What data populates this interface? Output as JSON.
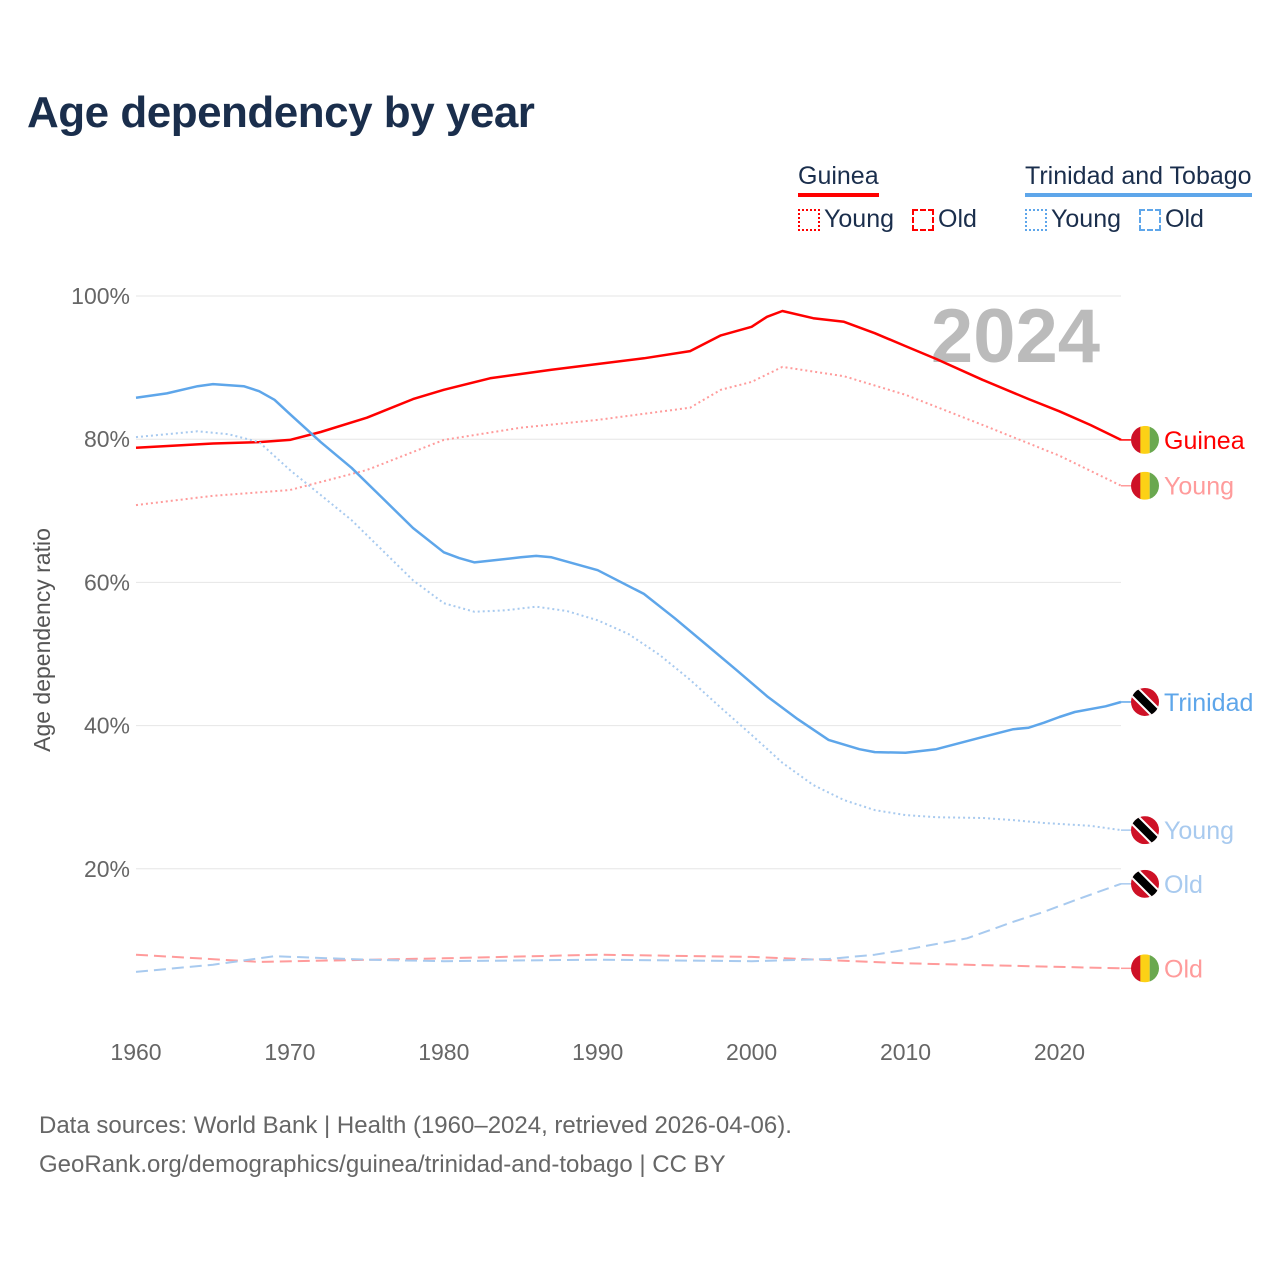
{
  "title": "Age dependency by year",
  "legend": [
    {
      "country": "Guinea",
      "color": "#ff0000",
      "items": [
        {
          "label": "Young",
          "style": "dotted"
        },
        {
          "label": "Old",
          "style": "dashed"
        }
      ]
    },
    {
      "country": "Trinidad and Tobago",
      "color": "#5ea6ea",
      "items": [
        {
          "label": "Young",
          "style": "dotted"
        },
        {
          "label": "Old",
          "style": "dashed"
        }
      ]
    }
  ],
  "year_watermark": "2024",
  "source": {
    "line1": "Data sources: World Bank | Health (1960–2024, retrieved 2026-04-06).",
    "line2": "GeoRank.org/demographics/guinea/trinidad-and-tobago | CC BY"
  },
  "chart_data": {
    "type": "line",
    "title": "Age dependency by year",
    "xlabel": "",
    "ylabel": "Age dependency ratio",
    "xlim": [
      1960,
      2024
    ],
    "ylim": [
      0,
      100
    ],
    "x_ticks": [
      1960,
      1970,
      1980,
      1990,
      2000,
      2010,
      2020
    ],
    "y_ticks": [
      {
        "v": 20,
        "label": "20%"
      },
      {
        "v": 40,
        "label": "40%"
      },
      {
        "v": 60,
        "label": "60%"
      },
      {
        "v": 80,
        "label": "80%"
      },
      {
        "v": 100,
        "label": "100%"
      }
    ],
    "grid": true,
    "series": [
      {
        "name": "Guinea",
        "end_label": "Guinea",
        "flag": "guinea",
        "color": "#ff0000",
        "style": "solid",
        "x": [
          1960,
          1965,
          1968,
          1970,
          1972,
          1975,
          1978,
          1980,
          1983,
          1985,
          1987,
          1990,
          1993,
          1996,
          1998,
          2000,
          2001,
          2002,
          2004,
          2006,
          2008,
          2010,
          2012,
          2015,
          2018,
          2020,
          2022,
          2024
        ],
        "y": [
          78.8,
          79.4,
          79.6,
          79.9,
          81,
          83,
          85.6,
          86.9,
          88.5,
          89.1,
          89.7,
          90.5,
          91.3,
          92.3,
          94.5,
          95.7,
          97.1,
          97.9,
          96.9,
          96.4,
          94.8,
          93,
          91.2,
          88.3,
          85.6,
          83.9,
          82,
          79.9
        ]
      },
      {
        "name": "Guinea Young",
        "end_label": "Young",
        "flag": "guinea",
        "color": "#ff9b9b",
        "style": "dotted",
        "x": [
          1960,
          1965,
          1970,
          1975,
          1980,
          1985,
          1990,
          1996,
          1998,
          2000,
          2002,
          2006,
          2010,
          2015,
          2020,
          2024
        ],
        "y": [
          70.8,
          72.1,
          72.9,
          75.7,
          79.9,
          81.6,
          82.7,
          84.4,
          86.9,
          88,
          90.1,
          88.8,
          86.2,
          82,
          77.7,
          73.5
        ]
      },
      {
        "name": "Guinea Old",
        "end_label": "Old",
        "flag": "guinea",
        "color": "#ff9b9b",
        "style": "dashed",
        "x": [
          1960,
          1968,
          1980,
          1990,
          2000,
          2010,
          2020,
          2024
        ],
        "y": [
          8,
          7,
          7.5,
          8,
          7.7,
          6.8,
          6.3,
          6.1
        ]
      },
      {
        "name": "Trinidad and Tobago",
        "end_label": "Trinidad",
        "flag": "trinidad",
        "color": "#5ea6ea",
        "style": "solid",
        "x": [
          1960,
          1962,
          1964,
          1965,
          1967,
          1968,
          1969,
          1970,
          1972,
          1974,
          1976,
          1978,
          1980,
          1981,
          1982,
          1985,
          1986,
          1987,
          1990,
          1993,
          1995,
          1997,
          1999,
          2001,
          2003,
          2005,
          2007,
          2008,
          2010,
          2012,
          2015,
          2017,
          2018,
          2019,
          2020,
          2021,
          2023,
          2024
        ],
        "y": [
          85.8,
          86.4,
          87.4,
          87.7,
          87.4,
          86.7,
          85.5,
          83.5,
          79.6,
          76,
          71.8,
          67.6,
          64.2,
          63.4,
          62.8,
          63.5,
          63.7,
          63.5,
          61.7,
          58.4,
          55,
          51.4,
          47.8,
          44.1,
          40.9,
          38,
          36.7,
          36.3,
          36.2,
          36.7,
          38.4,
          39.5,
          39.7,
          40.4,
          41.2,
          41.9,
          42.7,
          43.3
        ]
      },
      {
        "name": "Trinidad and Tobago Young",
        "end_label": "Young",
        "flag": "trinidad",
        "color": "#a8caef",
        "style": "dotted",
        "x": [
          1960,
          1964,
          1966,
          1968,
          1970,
          1972,
          1974,
          1976,
          1978,
          1980,
          1982,
          1984,
          1986,
          1988,
          1990,
          1992,
          1994,
          1996,
          1998,
          2000,
          2002,
          2004,
          2006,
          2008,
          2010,
          2012,
          2015,
          2017,
          2019,
          2022,
          2024
        ],
        "y": [
          80.3,
          81.1,
          80.7,
          79.6,
          75.7,
          72.2,
          68.7,
          64.5,
          60.3,
          57.1,
          55.9,
          56.1,
          56.6,
          56,
          54.7,
          52.8,
          49.9,
          46.4,
          42.5,
          38.7,
          34.8,
          31.7,
          29.6,
          28.2,
          27.5,
          27.2,
          27.1,
          26.8,
          26.4,
          26,
          25.4
        ]
      },
      {
        "name": "Trinidad and Tobago Old",
        "end_label": "Old",
        "flag": "trinidad",
        "color": "#a8caef",
        "style": "dashed",
        "x": [
          1960,
          1965,
          1969,
          1975,
          1980,
          1990,
          2000,
          2005,
          2008,
          2010,
          2014,
          2017,
          2019,
          2021,
          2024
        ],
        "y": [
          5.6,
          6.6,
          7.8,
          7.3,
          7.1,
          7.3,
          7.1,
          7.4,
          8,
          8.7,
          10.3,
          12.6,
          14,
          15.6,
          17.9
        ]
      }
    ]
  }
}
